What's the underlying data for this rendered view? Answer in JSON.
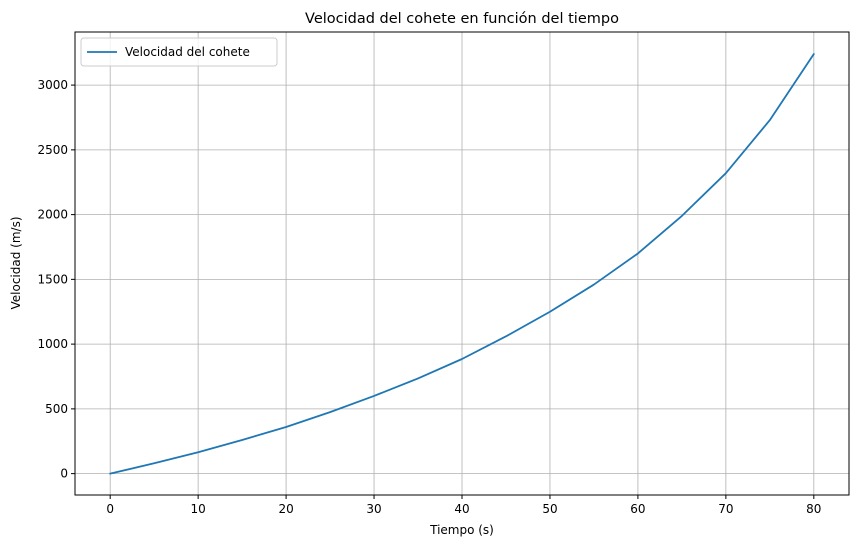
{
  "chart_data": {
    "type": "line",
    "title": "Velocidad del cohete en función del tiempo",
    "xlabel": "Tiempo (s)",
    "ylabel": "Velocidad (m/s)",
    "xlim": [
      -4,
      84
    ],
    "ylim": [
      -165,
      3410
    ],
    "xticks": [
      0,
      10,
      20,
      30,
      40,
      50,
      60,
      70,
      80
    ],
    "yticks": [
      0,
      500,
      1000,
      1500,
      2000,
      2500,
      3000
    ],
    "grid": true,
    "legend_position": "top-left",
    "series": [
      {
        "name": "Velocidad del cohete",
        "color": "#1f77b4",
        "x": [
          0,
          5,
          10,
          15,
          20,
          25,
          30,
          35,
          40,
          45,
          50,
          55,
          60,
          65,
          70,
          75,
          80
        ],
        "y": [
          0,
          80,
          165,
          260,
          360,
          475,
          600,
          735,
          885,
          1060,
          1250,
          1460,
          1700,
          1990,
          2320,
          2730,
          3240
        ]
      }
    ]
  }
}
